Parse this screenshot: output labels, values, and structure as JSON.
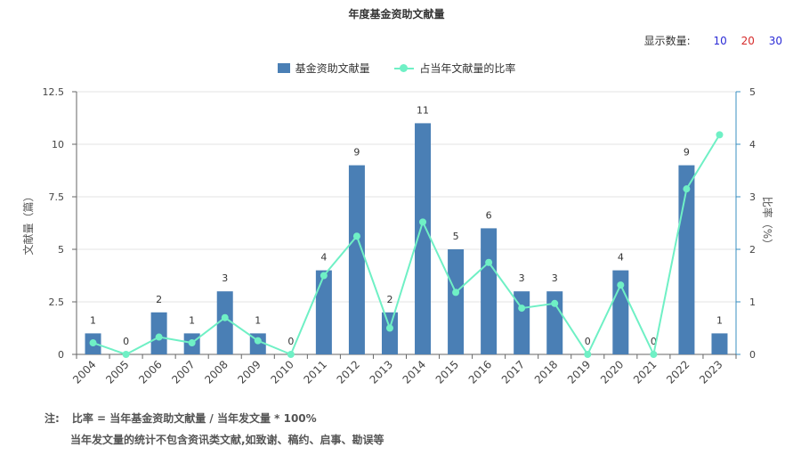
{
  "title": "年度基金资助文献量",
  "controls": {
    "label": "显示数量:",
    "options": [
      {
        "text": "10",
        "color": "#2b2bd6"
      },
      {
        "text": "20",
        "color": "#d62b2b"
      },
      {
        "text": "30",
        "color": "#2b2bd6"
      }
    ]
  },
  "colors": {
    "bar": "#4a7fb5",
    "line": "#6ff0c5",
    "axis_right": "#3a8fc0"
  },
  "chart_data": {
    "type": "bar",
    "title": "年度基金资助文献量",
    "categories": [
      "2004",
      "2005",
      "2006",
      "2007",
      "2008",
      "2009",
      "2010",
      "2011",
      "2012",
      "2013",
      "2014",
      "2015",
      "2016",
      "2017",
      "2018",
      "2019",
      "2020",
      "2021",
      "2022",
      "2023"
    ],
    "series": [
      {
        "name": "基金资助文献量",
        "type": "bar",
        "axis": "left",
        "values": [
          1,
          0,
          2,
          1,
          3,
          1,
          0,
          4,
          9,
          2,
          11,
          5,
          6,
          3,
          3,
          0,
          4,
          0,
          9,
          1
        ]
      },
      {
        "name": "占当年文献量的比率",
        "type": "line",
        "axis": "right",
        "values": [
          0.22,
          0,
          0.33,
          0.22,
          0.7,
          0.26,
          0,
          1.5,
          2.25,
          0.5,
          2.52,
          1.18,
          1.75,
          0.88,
          0.97,
          0,
          1.32,
          0,
          3.15,
          4.18
        ]
      }
    ],
    "ylabel": "文献量（篇）",
    "ylabel_right": "比率（%）",
    "ylim": [
      0,
      12.5
    ],
    "ylim_right": [
      0,
      5
    ],
    "yticks": [
      "0",
      "2.5",
      "5",
      "7.5",
      "10",
      "12.5"
    ],
    "yticks_right": [
      "0",
      "1",
      "2",
      "3",
      "4",
      "5"
    ],
    "grid": true,
    "legend_position": "top-center"
  },
  "notes": {
    "line1_key": "注:",
    "line1_text": "比率 = 当年基金资助文献量 / 当年发文量 * 100%",
    "line2_text": "当年发文量的统计不包含资讯类文献,如致谢、稿约、启事、勘误等"
  }
}
